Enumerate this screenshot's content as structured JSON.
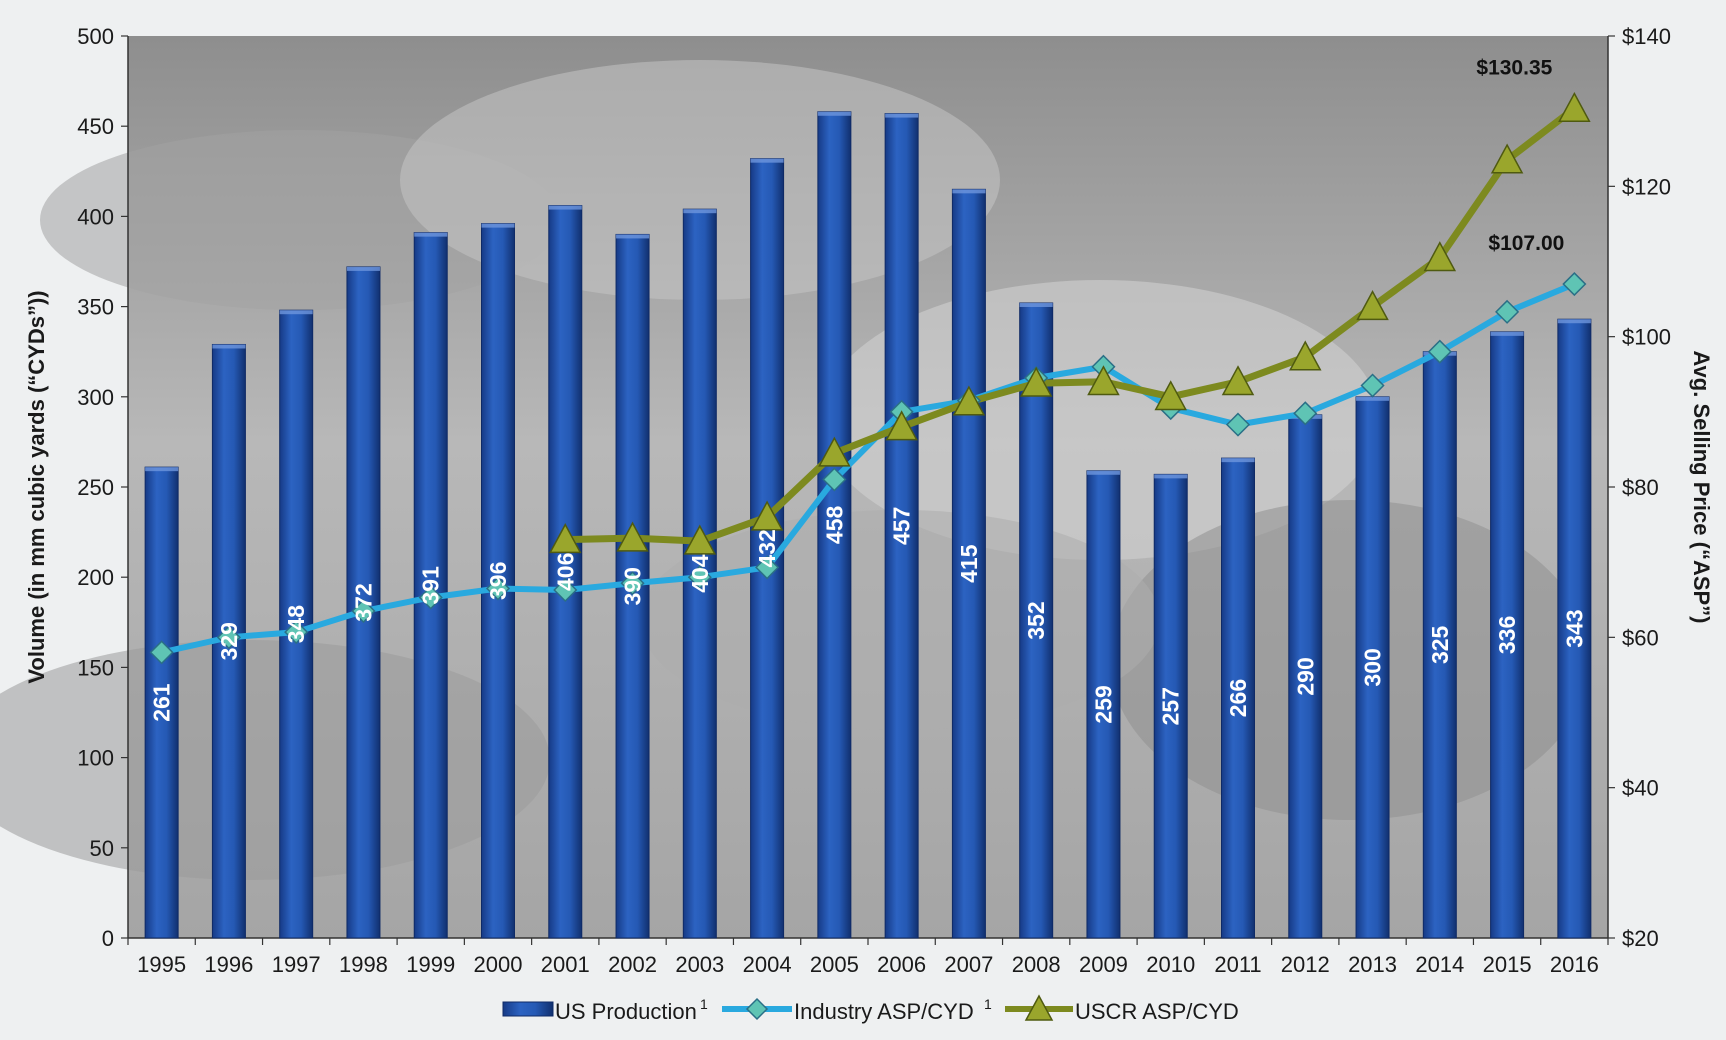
{
  "chart_data": {
    "type": "bar",
    "categories": [
      "1995",
      "1996",
      "1997",
      "1998",
      "1999",
      "2000",
      "2001",
      "2002",
      "2003",
      "2004",
      "2005",
      "2006",
      "2007",
      "2008",
      "2009",
      "2010",
      "2011",
      "2012",
      "2013",
      "2014",
      "2015",
      "2016"
    ],
    "series": [
      {
        "name": "US Production",
        "superscript": "1",
        "type": "bar",
        "axis": "left",
        "values": [
          261,
          329,
          348,
          372,
          391,
          396,
          406,
          390,
          404,
          432,
          458,
          457,
          415,
          352,
          259,
          257,
          266,
          290,
          300,
          325,
          336,
          343
        ],
        "value_labels": [
          "261",
          "329",
          "348",
          "372",
          "391",
          "396",
          "406",
          "390",
          "404",
          "432",
          "458",
          "457",
          "415",
          "352",
          "259",
          "257",
          "266",
          "290",
          "300",
          "325",
          "336",
          "343"
        ]
      },
      {
        "name": "Industry ASP/CYD",
        "superscript": "1",
        "type": "line",
        "marker": "diamond",
        "axis": "right",
        "values": [
          58,
          60,
          60.7,
          63.5,
          65.3,
          66.5,
          66.3,
          67.2,
          68,
          69.3,
          81,
          90,
          91.5,
          94.5,
          96,
          90.5,
          88.3,
          89.8,
          93.5,
          98,
          103.3,
          107
        ]
      },
      {
        "name": "USCR ASP/CYD",
        "superscript": "",
        "type": "line",
        "marker": "triangle",
        "axis": "right",
        "values": [
          null,
          null,
          null,
          null,
          null,
          null,
          73,
          73.2,
          72.8,
          76,
          84.5,
          88,
          91.3,
          93.8,
          94,
          92,
          94,
          97.3,
          104,
          110.5,
          123.5,
          130.35
        ]
      }
    ],
    "end_labels": [
      "$130.35",
      "$107.00"
    ],
    "ylabel": "Volume (in mm cubic yards (“CYDs”))",
    "y2label": "Avg. Selling Price (“ASP”)",
    "ylim": [
      0,
      500
    ],
    "y_ticks": [
      "0",
      "50",
      "100",
      "150",
      "200",
      "250",
      "300",
      "350",
      "400",
      "450",
      "500"
    ],
    "y2lim": [
      20,
      140
    ],
    "y2_ticks": [
      "$20",
      "$40",
      "$60",
      "$80",
      "$100",
      "$120",
      "$140"
    ],
    "legend_position": "bottom-center",
    "colors": {
      "bar": "#1f4fa3",
      "bar_dark": "#16357a",
      "bar_light": "#2f68c8",
      "industry_line": "#29a9df",
      "industry_marker": "#5fc4b4",
      "uscr_line": "#7d8a1f",
      "uscr_marker": "#9aa62c"
    }
  }
}
